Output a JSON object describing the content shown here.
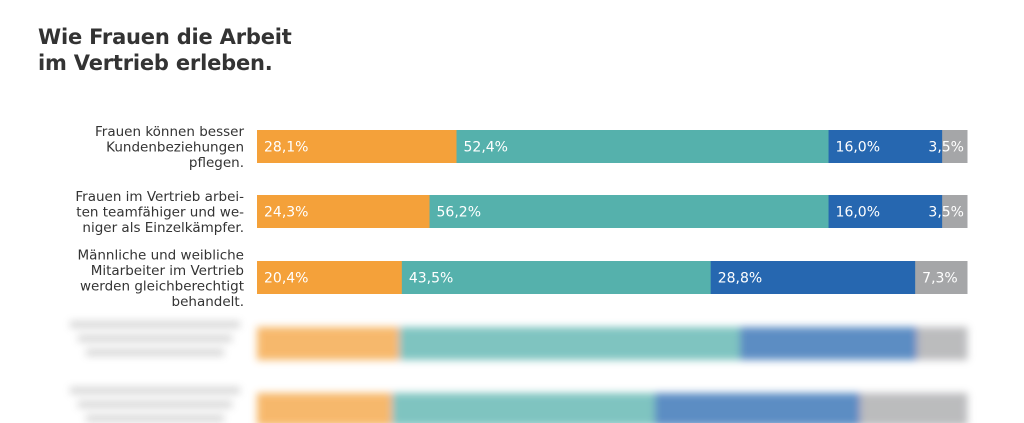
{
  "title": {
    "line1": "Wie Frauen die Arbeit",
    "line2": "im Vertrieb erleben."
  },
  "colors": [
    "#F4A13A",
    "#55B1AC",
    "#2667B0",
    "#A5A6A8"
  ],
  "chart_data": {
    "type": "bar",
    "orientation": "horizontal",
    "stacked": true,
    "percent_stacked": true,
    "categories": [
      [
        "Frauen können besser",
        "Kundenbeziehungen",
        "pflegen."
      ],
      [
        "Frauen im Vertrieb arbei-",
        "ten teamfähiger und we-",
        "niger als Einzelkämpfer."
      ],
      [
        "Männliche und weibliche",
        "Mitarbeiter im Vertrieb",
        "werden gleichberechtigt",
        "behandelt."
      ]
    ],
    "rows": [
      {
        "values": [
          28.1,
          52.4,
          16.0,
          3.5
        ],
        "labels": [
          "28,1%",
          "52,4%",
          "16,0%",
          "3,5%"
        ]
      },
      {
        "values": [
          24.3,
          56.2,
          16.0,
          3.5
        ],
        "labels": [
          "24,3%",
          "56,2%",
          "16,0%",
          "3,5%"
        ]
      },
      {
        "values": [
          20.4,
          43.5,
          28.8,
          7.3
        ],
        "labels": [
          "20,4%",
          "43,5%",
          "28,8%",
          "7,3%"
        ]
      }
    ],
    "blurred_rows": [
      {
        "values": [
          20.0,
          48.0,
          25.0,
          7.0
        ]
      },
      {
        "values": [
          19.0,
          37.0,
          29.0,
          15.0
        ]
      }
    ]
  }
}
